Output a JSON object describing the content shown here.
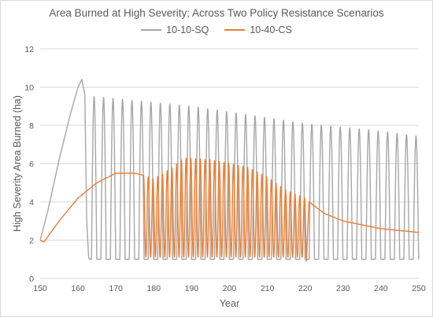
{
  "colors": {
    "sq": "#a6a6a6",
    "cs": "#ed7d31",
    "grid": "#d9d9d9"
  },
  "chart_data": {
    "type": "line",
    "title": "Area Burned at High Severity; Across Two Policy Resistance Scenarios",
    "xlabel": "Year",
    "ylabel": "High Severity Area Burned (ha)",
    "xlim": [
      150,
      250
    ],
    "ylim": [
      0,
      12
    ],
    "x_ticks": [
      150,
      160,
      170,
      180,
      190,
      200,
      210,
      220,
      230,
      240,
      250
    ],
    "y_ticks": [
      0,
      2,
      4,
      6,
      8,
      10,
      12
    ],
    "grid": "horizontal",
    "legend_position": "top",
    "series": [
      {
        "name": "10-10-SQ",
        "color": "#a6a6a6",
        "description": "rises from 2 to peak ~10.4 at year 161, then oscillates with ~2.5-year period between ~1.0 and peaks slowly decaying from 9.5 to ~7.5",
        "trend_points": [
          [
            150,
            2.0
          ],
          [
            152,
            3.5
          ],
          [
            155,
            6.2
          ],
          [
            158,
            8.6
          ],
          [
            160,
            10.0
          ],
          [
            161,
            10.4
          ],
          [
            162,
            10.2
          ],
          [
            163,
            1.1
          ],
          [
            165,
            9.5
          ],
          [
            170,
            9.4
          ],
          [
            180,
            9.2
          ],
          [
            190,
            9.0
          ],
          [
            200,
            8.7
          ],
          [
            210,
            8.4
          ],
          [
            220,
            8.1
          ],
          [
            230,
            7.9
          ],
          [
            240,
            7.7
          ],
          [
            249,
            7.45
          ],
          [
            250,
            0.9
          ]
        ],
        "oscillation_period": 2.5,
        "trough": 1.0
      },
      {
        "name": "10-40-CS",
        "color": "#ed7d31",
        "description": "rises from 1.9 to plateau ~5.5, then oscillates between ~1.1 and 5.5–6.3 from year 177 to 220, then decays smoothly to ~2.4",
        "trend_points": [
          [
            150,
            2.0
          ],
          [
            151,
            1.9
          ],
          [
            155,
            3.0
          ],
          [
            160,
            4.2
          ],
          [
            165,
            5.0
          ],
          [
            170,
            5.5
          ],
          [
            175,
            5.5
          ],
          [
            177,
            5.4
          ],
          [
            178,
            1.5
          ],
          [
            188,
            6.3
          ],
          [
            195,
            6.2
          ],
          [
            200,
            6.0
          ],
          [
            210,
            5.3
          ],
          [
            215,
            4.6
          ],
          [
            220,
            0.9
          ],
          [
            221,
            4.0
          ],
          [
            225,
            3.4
          ],
          [
            230,
            3.0
          ],
          [
            240,
            2.6
          ],
          [
            250,
            2.4
          ]
        ],
        "oscillation_period": 1.25,
        "trough": 1.1
      }
    ]
  }
}
